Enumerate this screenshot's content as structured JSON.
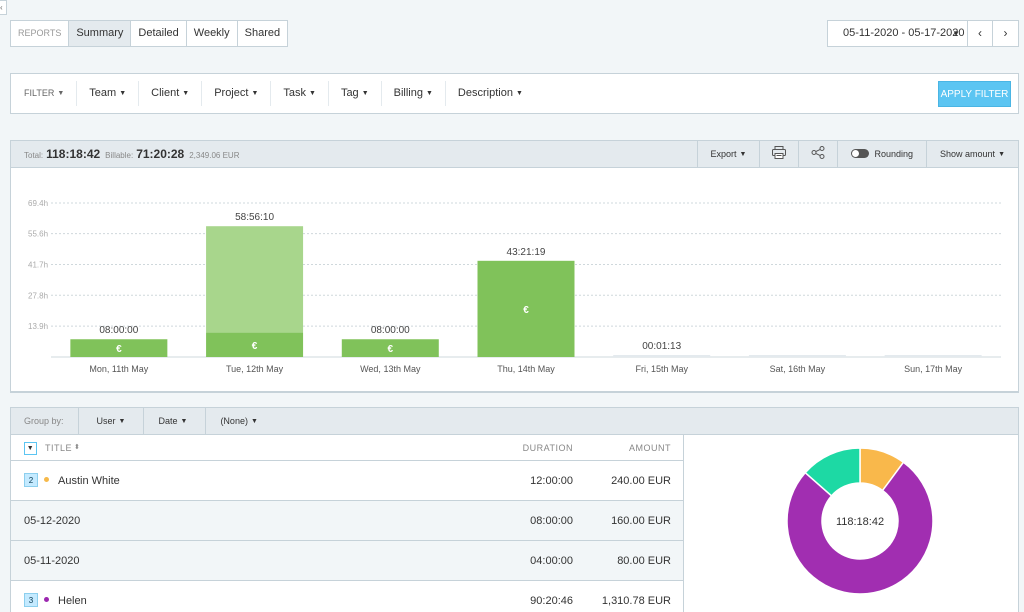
{
  "report_tabs": {
    "label": "REPORTS",
    "items": [
      "Summary",
      "Detailed",
      "Weekly",
      "Shared"
    ],
    "active": "Summary"
  },
  "date_range": {
    "value": "05-11-2020 - 05-17-2020",
    "prev_icon": "chevron-left-icon",
    "next_icon": "chevron-right-icon"
  },
  "filter_bar": {
    "label": "FILTER",
    "items": [
      "Team",
      "Client",
      "Project",
      "Task",
      "Tag",
      "Billing",
      "Description"
    ],
    "apply_label": "APPLY FILTER"
  },
  "summary": {
    "total_label": "Total:",
    "total_value": "118:18:42",
    "billable_label": "Billable:",
    "billable_value": "71:20:28",
    "amount": "2,349.06 EUR",
    "export_label": "Export",
    "rounding_label": "Rounding",
    "show_amount_label": "Show amount",
    "colors": {
      "billable": "#80c25a",
      "non_billable": "#a8d68c",
      "empty": "#e4eaee",
      "accent": "#5cc5f2"
    }
  },
  "chart_data": {
    "type": "bar",
    "categories": [
      "Mon, 11th May",
      "Tue, 12th May",
      "Wed, 13th May",
      "Thu, 14th May",
      "Fri, 15th May",
      "Sat, 16th May",
      "Sun, 17th May"
    ],
    "y_ticks": [
      "13.9h",
      "27.8h",
      "41.7h",
      "55.6h",
      "69.4h"
    ],
    "ylim": [
      0,
      69.4
    ],
    "series": [
      {
        "values": [
          8.0,
          11.0,
          8.0,
          43.35,
          0,
          0,
          0
        ]
      },
      {
        "values": [
          0,
          47.94,
          0,
          0,
          0.02,
          0,
          0
        ]
      }
    ],
    "data_labels": [
      "08:00:00",
      "58:56:10",
      "08:00:00",
      "43:21:19",
      "00:01:13",
      "",
      ""
    ],
    "currency_marks": [
      true,
      true,
      true,
      true,
      false,
      false,
      false
    ],
    "currency_symbol": "€",
    "grid": true
  },
  "group_by": {
    "label": "Group by:",
    "options": [
      "User",
      "Date",
      "(None)"
    ]
  },
  "table": {
    "columns": [
      "TITLE",
      "DURATION",
      "AMOUNT"
    ],
    "rows": [
      {
        "badge": "2",
        "dot_color": "#f6b94a",
        "title": "Austin White",
        "duration": "12:00:00",
        "amount": "240.00 EUR"
      },
      {
        "title": "05-12-2020",
        "duration": "08:00:00",
        "amount": "160.00 EUR"
      },
      {
        "title": "05-11-2020",
        "duration": "04:00:00",
        "amount": "80.00 EUR"
      },
      {
        "badge": "3",
        "dot_color": "#9c27b0",
        "title": "Helen",
        "duration": "90:20:46",
        "amount": "1,310.78 EUR"
      }
    ]
  },
  "donut": {
    "center_label": "118:18:42",
    "slices": [
      {
        "value": 12.0,
        "color": "#f9b84b"
      },
      {
        "value": 90.35,
        "color": "#a12eb1"
      },
      {
        "value": 15.96,
        "color": "#1dd9a4"
      }
    ]
  }
}
